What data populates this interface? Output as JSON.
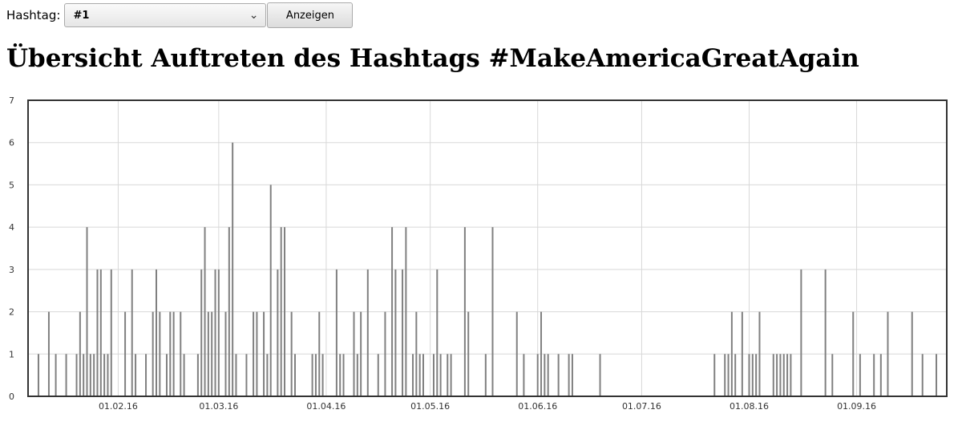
{
  "form": {
    "label": "Hashtag:",
    "selected": "#1",
    "button": "Anzeigen"
  },
  "page_title": "Übersicht Auftreten des Hashtags #MakeAmericaGreatAgain",
  "colors": {
    "bar": "#808080",
    "grid": "#d8d8d8",
    "axis": "#333333"
  },
  "chart_data": {
    "type": "bar",
    "x_start": "2016-01-06",
    "x_end": "2016-09-27",
    "ylim": [
      0,
      7
    ],
    "yticks": [
      0,
      1,
      2,
      3,
      4,
      5,
      6,
      7
    ],
    "xticks": [
      {
        "date": "2016-02-01",
        "label": "01.02.16"
      },
      {
        "date": "2016-03-01",
        "label": "01.03.16"
      },
      {
        "date": "2016-04-01",
        "label": "01.04.16"
      },
      {
        "date": "2016-05-01",
        "label": "01.05.16"
      },
      {
        "date": "2016-06-01",
        "label": "01.06.16"
      },
      {
        "date": "2016-07-01",
        "label": "01.07.16"
      },
      {
        "date": "2016-08-01",
        "label": "01.08.16"
      },
      {
        "date": "2016-09-01",
        "label": "01.09.16"
      }
    ],
    "points": [
      {
        "date": "2016-01-09",
        "value": 1
      },
      {
        "date": "2016-01-12",
        "value": 2
      },
      {
        "date": "2016-01-14",
        "value": 1
      },
      {
        "date": "2016-01-17",
        "value": 1
      },
      {
        "date": "2016-01-20",
        "value": 1
      },
      {
        "date": "2016-01-21",
        "value": 2
      },
      {
        "date": "2016-01-22",
        "value": 1
      },
      {
        "date": "2016-01-23",
        "value": 4
      },
      {
        "date": "2016-01-24",
        "value": 1
      },
      {
        "date": "2016-01-25",
        "value": 1
      },
      {
        "date": "2016-01-26",
        "value": 3
      },
      {
        "date": "2016-01-27",
        "value": 3
      },
      {
        "date": "2016-01-28",
        "value": 1
      },
      {
        "date": "2016-01-29",
        "value": 1
      },
      {
        "date": "2016-01-30",
        "value": 3
      },
      {
        "date": "2016-02-03",
        "value": 2
      },
      {
        "date": "2016-02-05",
        "value": 3
      },
      {
        "date": "2016-02-06",
        "value": 1
      },
      {
        "date": "2016-02-09",
        "value": 1
      },
      {
        "date": "2016-02-11",
        "value": 2
      },
      {
        "date": "2016-02-12",
        "value": 3
      },
      {
        "date": "2016-02-13",
        "value": 2
      },
      {
        "date": "2016-02-15",
        "value": 1
      },
      {
        "date": "2016-02-16",
        "value": 2
      },
      {
        "date": "2016-02-17",
        "value": 2
      },
      {
        "date": "2016-02-19",
        "value": 2
      },
      {
        "date": "2016-02-20",
        "value": 1
      },
      {
        "date": "2016-02-24",
        "value": 1
      },
      {
        "date": "2016-02-25",
        "value": 3
      },
      {
        "date": "2016-02-26",
        "value": 4
      },
      {
        "date": "2016-02-27",
        "value": 2
      },
      {
        "date": "2016-02-28",
        "value": 2
      },
      {
        "date": "2016-02-29",
        "value": 3
      },
      {
        "date": "2016-03-01",
        "value": 3
      },
      {
        "date": "2016-03-03",
        "value": 2
      },
      {
        "date": "2016-03-04",
        "value": 4
      },
      {
        "date": "2016-03-05",
        "value": 6
      },
      {
        "date": "2016-03-06",
        "value": 1
      },
      {
        "date": "2016-03-09",
        "value": 1
      },
      {
        "date": "2016-03-11",
        "value": 2
      },
      {
        "date": "2016-03-12",
        "value": 2
      },
      {
        "date": "2016-03-14",
        "value": 2
      },
      {
        "date": "2016-03-15",
        "value": 1
      },
      {
        "date": "2016-03-16",
        "value": 5
      },
      {
        "date": "2016-03-18",
        "value": 3
      },
      {
        "date": "2016-03-19",
        "value": 4
      },
      {
        "date": "2016-03-20",
        "value": 4
      },
      {
        "date": "2016-03-22",
        "value": 2
      },
      {
        "date": "2016-03-23",
        "value": 1
      },
      {
        "date": "2016-03-28",
        "value": 1
      },
      {
        "date": "2016-03-29",
        "value": 1
      },
      {
        "date": "2016-03-30",
        "value": 2
      },
      {
        "date": "2016-03-31",
        "value": 1
      },
      {
        "date": "2016-04-04",
        "value": 3
      },
      {
        "date": "2016-04-05",
        "value": 1
      },
      {
        "date": "2016-04-06",
        "value": 1
      },
      {
        "date": "2016-04-09",
        "value": 2
      },
      {
        "date": "2016-04-10",
        "value": 1
      },
      {
        "date": "2016-04-11",
        "value": 2
      },
      {
        "date": "2016-04-13",
        "value": 3
      },
      {
        "date": "2016-04-16",
        "value": 1
      },
      {
        "date": "2016-04-18",
        "value": 2
      },
      {
        "date": "2016-04-20",
        "value": 4
      },
      {
        "date": "2016-04-21",
        "value": 3
      },
      {
        "date": "2016-04-23",
        "value": 3
      },
      {
        "date": "2016-04-24",
        "value": 4
      },
      {
        "date": "2016-04-26",
        "value": 1
      },
      {
        "date": "2016-04-27",
        "value": 2
      },
      {
        "date": "2016-04-28",
        "value": 1
      },
      {
        "date": "2016-04-29",
        "value": 1
      },
      {
        "date": "2016-05-02",
        "value": 1
      },
      {
        "date": "2016-05-03",
        "value": 3
      },
      {
        "date": "2016-05-04",
        "value": 1
      },
      {
        "date": "2016-05-06",
        "value": 1
      },
      {
        "date": "2016-05-07",
        "value": 1
      },
      {
        "date": "2016-05-11",
        "value": 4
      },
      {
        "date": "2016-05-12",
        "value": 2
      },
      {
        "date": "2016-05-17",
        "value": 1
      },
      {
        "date": "2016-05-19",
        "value": 4
      },
      {
        "date": "2016-05-26",
        "value": 2
      },
      {
        "date": "2016-05-28",
        "value": 1
      },
      {
        "date": "2016-06-01",
        "value": 1
      },
      {
        "date": "2016-06-02",
        "value": 2
      },
      {
        "date": "2016-06-03",
        "value": 1
      },
      {
        "date": "2016-06-04",
        "value": 1
      },
      {
        "date": "2016-06-07",
        "value": 1
      },
      {
        "date": "2016-06-10",
        "value": 1
      },
      {
        "date": "2016-06-11",
        "value": 1
      },
      {
        "date": "2016-06-19",
        "value": 1
      },
      {
        "date": "2016-07-22",
        "value": 1
      },
      {
        "date": "2016-07-25",
        "value": 1
      },
      {
        "date": "2016-07-26",
        "value": 1
      },
      {
        "date": "2016-07-27",
        "value": 2
      },
      {
        "date": "2016-07-28",
        "value": 1
      },
      {
        "date": "2016-07-30",
        "value": 2
      },
      {
        "date": "2016-08-01",
        "value": 1
      },
      {
        "date": "2016-08-02",
        "value": 1
      },
      {
        "date": "2016-08-03",
        "value": 1
      },
      {
        "date": "2016-08-04",
        "value": 2
      },
      {
        "date": "2016-08-08",
        "value": 1
      },
      {
        "date": "2016-08-09",
        "value": 1
      },
      {
        "date": "2016-08-10",
        "value": 1
      },
      {
        "date": "2016-08-11",
        "value": 1
      },
      {
        "date": "2016-08-12",
        "value": 1
      },
      {
        "date": "2016-08-13",
        "value": 1
      },
      {
        "date": "2016-08-16",
        "value": 3
      },
      {
        "date": "2016-08-23",
        "value": 3
      },
      {
        "date": "2016-08-25",
        "value": 1
      },
      {
        "date": "2016-08-31",
        "value": 2
      },
      {
        "date": "2016-09-02",
        "value": 1
      },
      {
        "date": "2016-09-06",
        "value": 1
      },
      {
        "date": "2016-09-08",
        "value": 1
      },
      {
        "date": "2016-09-10",
        "value": 2
      },
      {
        "date": "2016-09-17",
        "value": 2
      },
      {
        "date": "2016-09-20",
        "value": 1
      },
      {
        "date": "2016-09-24",
        "value": 1
      }
    ]
  }
}
